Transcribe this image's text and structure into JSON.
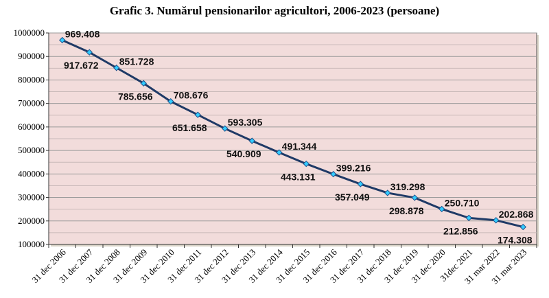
{
  "chart_data": {
    "type": "line",
    "title": "Grafic 3. Numărul pensionarilor agricultori, 2006-2023 (persoane)",
    "xlabel": "",
    "ylabel": "",
    "ylim": [
      100000,
      1000000
    ],
    "yticks": [
      "100000",
      "200000",
      "300000",
      "400000",
      "500000",
      "600000",
      "700000",
      "800000",
      "900000",
      "1000000"
    ],
    "grid": true,
    "legend": "none",
    "categories": [
      "31 dec 2006",
      "31 dec 2007",
      "31 dec 2008",
      "31 dec 2009",
      "31 dec 2010",
      "31 dec 2011",
      "31 dec 2012",
      "31 dec 2013",
      "31 dec 2014",
      "31 dec 2015",
      "31 dec 2016",
      "31 dec 2017",
      "31 dec 2018",
      "31 dec 2019",
      "31 dec 2020",
      "31dec 2021",
      "31 mar 2022",
      "31 mar 2023"
    ],
    "values": [
      969408,
      917672,
      851728,
      785656,
      708676,
      651658,
      593305,
      540909,
      491344,
      443131,
      399216,
      357049,
      319298,
      298878,
      250710,
      212856,
      202868,
      174308
    ],
    "data_labels": [
      "969.408",
      "917.672",
      "851.728",
      "785.656",
      "708.676",
      "651.658",
      "593.305",
      "540.909",
      "491.344",
      "443.131",
      "399.216",
      "357.049",
      "319.298",
      "298.878",
      "250.710",
      "212.856",
      "202.868",
      "174.308"
    ],
    "colors": {
      "plot_bg": "#f2dcdb",
      "line": "#1f3a66",
      "marker": "#33ccff",
      "grid": "#a6a6a6"
    }
  }
}
